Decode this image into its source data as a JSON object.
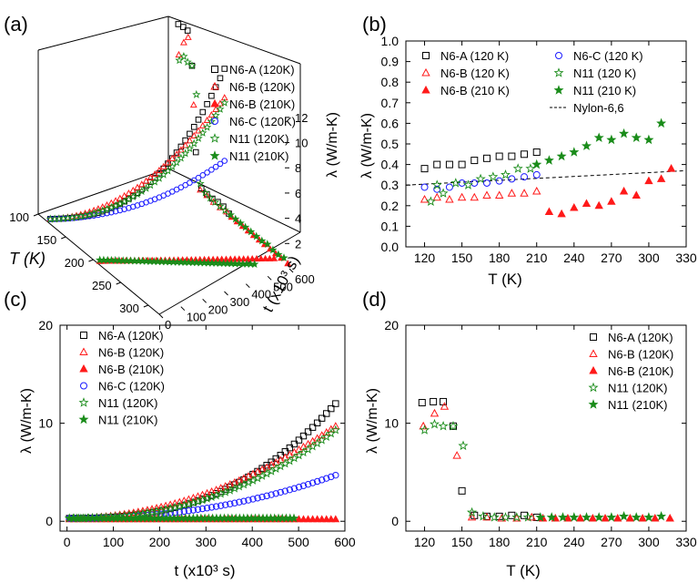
{
  "panels": {
    "a": {
      "label": "(a)",
      "legend": [
        "N6-A (120K)",
        "N6-B (120K)",
        "N6-B (210K)",
        "N6-C (120K)",
        "N11 (120K)",
        "N11 (210K)"
      ],
      "axis_T_label": "T (K)",
      "axis_T_ticks": [
        "100",
        "150",
        "200",
        "250",
        "300"
      ],
      "axis_t_label": "t (x10³ s)",
      "axis_t_ticks": [
        "0",
        "100",
        "200",
        "300",
        "400",
        "500",
        "600"
      ],
      "axis_z_label": "λ (W/m-K)",
      "axis_z_ticks": [
        "2",
        "4",
        "6",
        "8",
        "10",
        "12"
      ]
    },
    "b": {
      "label": "(b)",
      "legend": [
        "N6-A (120 K)",
        "N6-B (120 K)",
        "N6-B (210 K)",
        "N6-C (120 K)",
        "N11 (120 K)",
        "N11 (210 K)",
        "Nylon-6,6"
      ],
      "xlabel": "T (K)",
      "ylabel": "λ (W/m-K)",
      "xticks": [
        "120",
        "150",
        "180",
        "210",
        "240",
        "270",
        "300",
        "330"
      ],
      "yticks": [
        "0.0",
        "0.1",
        "0.2",
        "0.3",
        "0.4",
        "0.5",
        "0.6",
        "0.7",
        "0.8",
        "0.9",
        "1.0"
      ]
    },
    "c": {
      "label": "(c)",
      "legend": [
        "N6-A (120K)",
        "N6-B (120K)",
        "N6-B (210K)",
        "N6-C (120K)",
        "N11 (120K)",
        "N11 (210K)"
      ],
      "xlabel": "t (x10³ s)",
      "ylabel": "λ (W/m-K)",
      "xticks": [
        "0",
        "100",
        "200",
        "300",
        "400",
        "500",
        "600"
      ],
      "yticks": [
        "0",
        "10",
        "20"
      ]
    },
    "d": {
      "label": "(d)",
      "legend": [
        "N6-A (120K)",
        "N6-B (120K)",
        "N6-B (210K)",
        "N11 (120K)",
        "N11 (210K)"
      ],
      "xlabel": "T (K)",
      "ylabel": "λ (W/m-K)",
      "xticks": [
        "120",
        "150",
        "180",
        "210",
        "240",
        "270",
        "300",
        "330"
      ],
      "yticks": [
        "0",
        "10",
        "20"
      ]
    }
  },
  "colors": {
    "N6-A": "#000000",
    "N6-B": "#ff1a1a",
    "N6-C": "#1a1aff",
    "N11": "#1a8c1a"
  },
  "chart_data": [
    {
      "panel": "b",
      "type": "scatter",
      "xlabel": "T (K)",
      "ylabel": "λ (W/m-K)",
      "xlim": [
        105,
        330
      ],
      "ylim": [
        0.0,
        1.0
      ],
      "series": [
        {
          "name": "N6-A (120 K)",
          "marker": "square",
          "color": "#000000",
          "x": [
            120,
            130,
            140,
            150,
            160,
            170,
            180,
            190,
            200,
            210
          ],
          "y": [
            0.38,
            0.4,
            0.4,
            0.4,
            0.42,
            0.43,
            0.44,
            0.44,
            0.45,
            0.46
          ]
        },
        {
          "name": "N6-B (120 K)",
          "marker": "triangle-open",
          "color": "#ff1a1a",
          "x": [
            120,
            130,
            140,
            150,
            160,
            170,
            180,
            190,
            200,
            210
          ],
          "y": [
            0.23,
            0.24,
            0.23,
            0.24,
            0.24,
            0.25,
            0.25,
            0.26,
            0.26,
            0.27
          ]
        },
        {
          "name": "N6-B (210 K)",
          "marker": "triangle-filled",
          "color": "#ff1a1a",
          "x": [
            220,
            230,
            240,
            250,
            260,
            270,
            280,
            290,
            300,
            310,
            318
          ],
          "y": [
            0.17,
            0.16,
            0.19,
            0.21,
            0.2,
            0.22,
            0.27,
            0.25,
            0.32,
            0.33,
            0.38
          ]
        },
        {
          "name": "N6-C (120 K)",
          "marker": "circle",
          "color": "#1a1aff",
          "x": [
            120,
            130,
            140,
            150,
            160,
            170,
            180,
            190,
            200,
            210
          ],
          "y": [
            0.29,
            0.28,
            0.29,
            0.31,
            0.31,
            0.31,
            0.32,
            0.33,
            0.34,
            0.35
          ]
        },
        {
          "name": "N11 (120 K)",
          "marker": "star-open",
          "color": "#1a8c1a",
          "x": [
            125,
            130,
            135,
            145,
            155,
            165,
            175,
            185,
            195,
            205
          ],
          "y": [
            0.22,
            0.3,
            0.26,
            0.31,
            0.3,
            0.33,
            0.34,
            0.35,
            0.38,
            0.38
          ]
        },
        {
          "name": "N11 (210 K)",
          "marker": "star-filled",
          "color": "#1a8c1a",
          "x": [
            210,
            220,
            230,
            240,
            250,
            260,
            270,
            280,
            290,
            300,
            310
          ],
          "y": [
            0.4,
            0.42,
            0.44,
            0.46,
            0.49,
            0.53,
            0.52,
            0.55,
            0.53,
            0.52,
            0.6
          ]
        }
      ],
      "reference_line": {
        "name": "Nylon-6,6",
        "x": [
          105,
          330
        ],
        "y": [
          0.3,
          0.37
        ],
        "style": "dashed"
      }
    },
    {
      "panel": "c",
      "type": "scatter",
      "xlabel": "t (x10³ s)",
      "ylabel": "λ (W/m-K)",
      "xlim": [
        -15,
        600
      ],
      "ylim": [
        -1,
        20
      ],
      "series": [
        {
          "name": "N6-A (120K)",
          "marker": "square",
          "color": "#000000",
          "t_end": 580,
          "v0": 0.3,
          "v_end": 12.0,
          "power": 2.6
        },
        {
          "name": "N6-B (120K)",
          "marker": "triangle-open",
          "color": "#ff1a1a",
          "t_end": 580,
          "v0": 0.3,
          "v_end": 9.7,
          "power": 2.0
        },
        {
          "name": "N6-B (210K)",
          "marker": "triangle-filled",
          "color": "#ff1a1a",
          "t_end": 580,
          "v0": 0.2,
          "v_end": 0.2,
          "power": 1.0
        },
        {
          "name": "N6-C (120K)",
          "marker": "circle",
          "color": "#1a1aff",
          "t_end": 580,
          "v0": 0.3,
          "v_end": 4.7,
          "power": 2.2
        },
        {
          "name": "N11 (120K)",
          "marker": "star-open",
          "color": "#1a8c1a",
          "t_end": 580,
          "v0": 0.3,
          "v_end": 9.3,
          "power": 2.3
        },
        {
          "name": "N11 (210K)",
          "marker": "star-filled",
          "color": "#1a8c1a",
          "t_end": 490,
          "v0": 0.3,
          "v_end": 0.3,
          "power": 1.0
        }
      ]
    },
    {
      "panel": "d",
      "type": "scatter",
      "xlabel": "T (K)",
      "ylabel": "λ (W/m-K)",
      "xlim": [
        105,
        330
      ],
      "ylim": [
        -1,
        20
      ],
      "series": [
        {
          "name": "N6-A (120K)",
          "marker": "square",
          "color": "#000000",
          "x": [
            118,
            127,
            135,
            143,
            150,
            160,
            170,
            180,
            190,
            200,
            210
          ],
          "y": [
            12.1,
            12.2,
            12.2,
            9.7,
            3.1,
            0.6,
            0.5,
            0.5,
            0.6,
            0.6,
            0.4
          ]
        },
        {
          "name": "N6-B (120K)",
          "marker": "triangle-open",
          "color": "#ff1a1a",
          "x": [
            119,
            128,
            136,
            146,
            158,
            170,
            182,
            194,
            206
          ],
          "y": [
            9.7,
            11.0,
            11.7,
            6.7,
            0.4,
            0.4,
            0.3,
            0.3,
            0.4
          ]
        },
        {
          "name": "N6-B (210K)",
          "marker": "triangle-filled",
          "color": "#ff1a1a",
          "x": [
            215,
            225,
            235,
            245,
            255,
            265,
            275,
            285,
            295,
            305,
            317
          ],
          "y": [
            0.3,
            0.3,
            0.3,
            0.3,
            0.3,
            0.3,
            0.3,
            0.3,
            0.3,
            0.3,
            0.3
          ]
        },
        {
          "name": "N11 (120K)",
          "marker": "star-open",
          "color": "#1a8c1a",
          "x": [
            120,
            128,
            135,
            143,
            151,
            158,
            167,
            176,
            185,
            194,
            203
          ],
          "y": [
            9.3,
            9.9,
            9.7,
            9.7,
            7.7,
            0.9,
            0.5,
            0.4,
            0.4,
            0.4,
            0.4
          ]
        },
        {
          "name": "N11 (210K)",
          "marker": "star-filled",
          "color": "#1a8c1a",
          "x": [
            213,
            222,
            231,
            240,
            250,
            260,
            270,
            280,
            290,
            300,
            310
          ],
          "y": [
            0.4,
            0.4,
            0.4,
            0.4,
            0.4,
            0.4,
            0.4,
            0.5,
            0.4,
            0.4,
            0.5
          ]
        }
      ]
    },
    {
      "panel": "a",
      "type": "scatter",
      "note": "3D view: λ vs T and t; curves correspond to panels (c) and (d)",
      "xlabel": "T (K)",
      "ylabel": "t (x10³ s)",
      "zlabel": "λ (W/m-K)",
      "xlim": [
        100,
        320
      ],
      "ylim": [
        0,
        600
      ],
      "zlim": [
        0,
        13
      ]
    }
  ]
}
